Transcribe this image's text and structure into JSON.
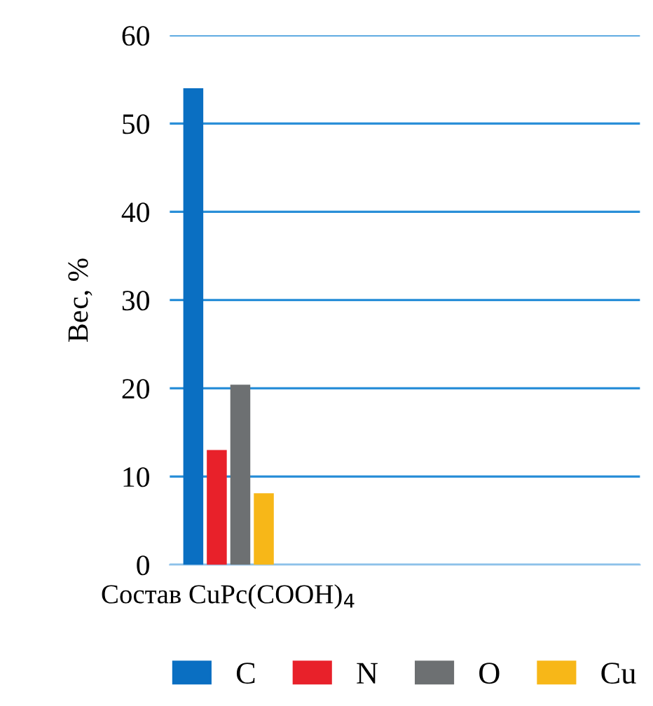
{
  "chart_data": {
    "type": "bar",
    "ylabel": "Вес, %",
    "categories": [
      "Состав CuPc(COOH)$_{4}$",
      null,
      null,
      null
    ],
    "series": [
      {
        "name": "C",
        "color": "#0a6fc2",
        "values": [
          54,
          null,
          null,
          null
        ]
      },
      {
        "name": "N",
        "color": "#e8212a",
        "values": [
          13,
          null,
          null,
          null
        ]
      },
      {
        "name": "O",
        "color": "#6d7072",
        "values": [
          20.4,
          null,
          null,
          null
        ]
      },
      {
        "name": "Cu",
        "color": "#f7b718",
        "values": [
          8.1,
          null,
          null,
          null
        ]
      }
    ],
    "ylim": [
      0,
      60
    ],
    "yticks": [
      0,
      10,
      20,
      30,
      40,
      50,
      60
    ],
    "grid": "y",
    "legend": "bottom"
  }
}
